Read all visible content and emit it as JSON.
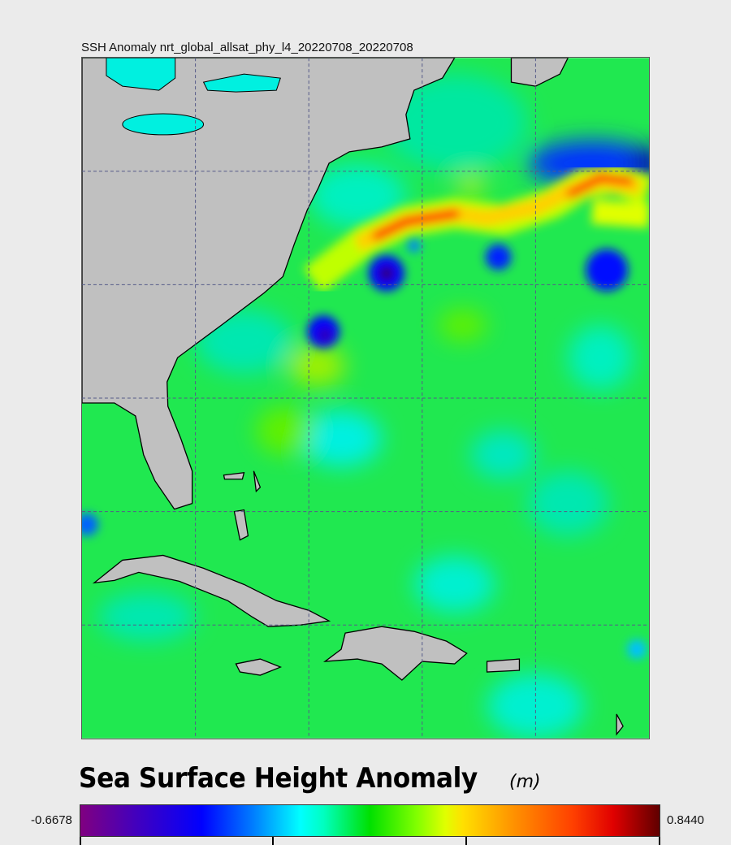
{
  "map": {
    "title": "SSH Anomaly nrt_global_allsat_phy_l4_20220708_20220708"
  },
  "colorbar": {
    "title": "Sea Surface Height Anomaly",
    "unit": "(m)",
    "min_label": "-0.6678",
    "max_label": "0.8440",
    "min": -0.6678,
    "max": 0.844,
    "colors": [
      "#800080",
      "#0000ff",
      "#00ffff",
      "#00e000",
      "#ffe000",
      "#ff4000",
      "#600000"
    ]
  }
}
